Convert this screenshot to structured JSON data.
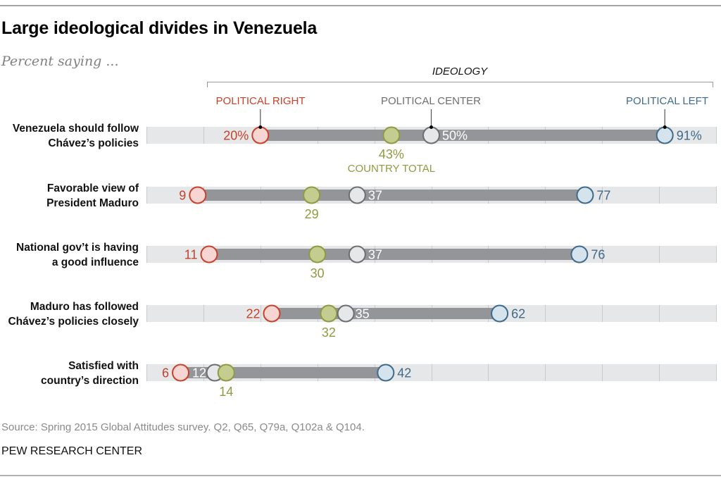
{
  "title": "Large ideological divides in Venezuela",
  "subtitle": "Percent saying ...",
  "source": "Source: Spring 2015 Global Attitudes survey. Q2, Q65, Q79a, Q102a & Q104.",
  "credit": "PEW RESEARCH CENTER",
  "colors": {
    "right": "#c8412b",
    "right_fill": "#f6d5d2",
    "center": "#6d6e71",
    "center_fill": "#e6e7e8",
    "left": "#3f6a8a",
    "left_fill": "#d5e3ec",
    "total": "#8f9b42",
    "total_fill": "#c4cc8f",
    "track": "#e6e7e8",
    "range_bar": "#939598",
    "gridline": "#c9cacb"
  },
  "chart_data": {
    "type": "dot-range",
    "title": "Large ideological divides in Venezuela",
    "subtitle": "Percent saying ...",
    "group_header": "IDEOLOGY",
    "legend": {
      "right": "POLITICAL RIGHT",
      "center": "POLITICAL CENTER",
      "left": "POLITICAL LEFT",
      "total": "COUNTRY TOTAL"
    },
    "xlim": [
      0,
      100
    ],
    "grid": true,
    "gridline_step": 10,
    "categories": [
      "Venezuela should follow Chávez’s policies",
      "Favorable view of President Maduro",
      "National gov’t is having a good influence",
      "Maduro has followed Chávez’s policies closely",
      "Satisfied with country’s direction"
    ],
    "category_lines": [
      [
        "Venezuela should follow",
        "Chávez’s policies"
      ],
      [
        "Favorable view of",
        "President Maduro"
      ],
      [
        "National gov’t is having",
        "a good influence"
      ],
      [
        "Maduro has followed",
        "Chávez’s policies closely"
      ],
      [
        "Satisfied with",
        "country’s direction"
      ]
    ],
    "series": [
      {
        "name": "Political Right",
        "key": "right",
        "values": [
          20,
          9,
          11,
          22,
          6
        ]
      },
      {
        "name": "Political Center",
        "key": "center",
        "values": [
          50,
          37,
          37,
          35,
          12
        ]
      },
      {
        "name": "Political Left",
        "key": "left",
        "values": [
          91,
          77,
          76,
          62,
          42
        ]
      },
      {
        "name": "Country Total",
        "key": "total",
        "values": [
          43,
          29,
          30,
          32,
          14
        ]
      }
    ],
    "value_labels": {
      "right": [
        "20%",
        "9",
        "11",
        "22",
        "6"
      ],
      "center": [
        "50%",
        "37",
        "37",
        "35",
        "12"
      ],
      "left": [
        "91%",
        "77",
        "76",
        "62",
        "42"
      ],
      "total": [
        "43%",
        "29",
        "30",
        "32",
        "14"
      ]
    }
  }
}
